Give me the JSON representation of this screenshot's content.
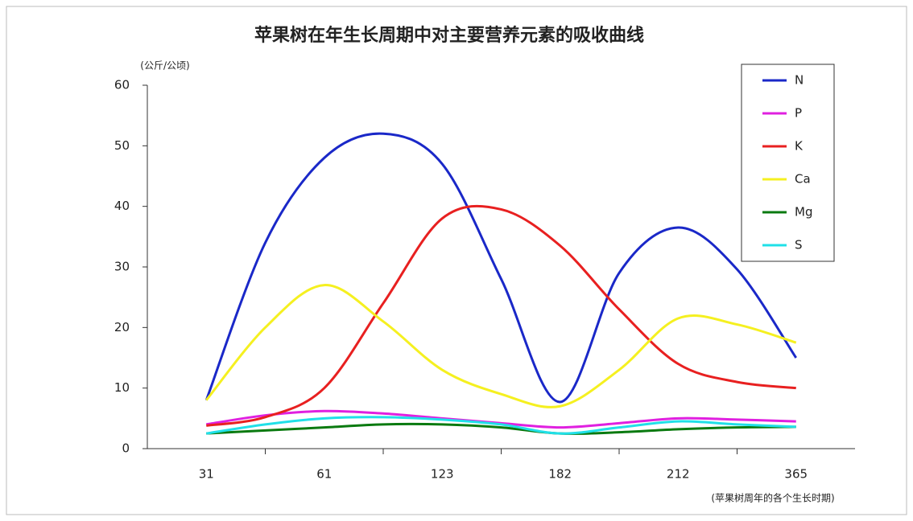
{
  "chart_data": {
    "type": "line",
    "title": "苹果树在年生长周期中对主要营养元素的吸收曲线",
    "y_label": "(公斤/公顷)",
    "x_label": "(苹果树周年的各个生长时期)",
    "categories": [
      "31",
      null,
      "61",
      null,
      "123",
      null,
      "182",
      null,
      "212",
      null,
      "365"
    ],
    "series": [
      {
        "name": "N",
        "color": "#1a28c8",
        "values": [
          8,
          34,
          48,
          52,
          47,
          28,
          7.7,
          29,
          36.5,
          29.6,
          15
        ]
      },
      {
        "name": "P",
        "color": "#e020e0",
        "values": [
          4,
          5.5,
          6.2,
          5.8,
          5,
          4.2,
          3.5,
          4.2,
          5,
          4.8,
          4.5
        ]
      },
      {
        "name": "K",
        "color": "#e82020",
        "values": [
          3.8,
          5.2,
          10,
          24,
          38,
          39.5,
          33.5,
          23,
          14,
          11,
          10
        ]
      },
      {
        "name": "Ca",
        "color": "#f5f020",
        "values": [
          8,
          20,
          27,
          21,
          13,
          9,
          7,
          13,
          21.5,
          20.5,
          17.5
        ]
      },
      {
        "name": "Mg",
        "color": "#0a7a10",
        "values": [
          2.5,
          3,
          3.5,
          4,
          4,
          3.5,
          2.5,
          2.7,
          3.2,
          3.5,
          3.6
        ]
      },
      {
        "name": "S",
        "color": "#20e0e8",
        "values": [
          2.5,
          4,
          5,
          5.2,
          4.8,
          4,
          2.5,
          3.5,
          4.5,
          4,
          3.6
        ]
      }
    ],
    "ylim": [
      0,
      60
    ],
    "yticks": [
      0,
      10,
      20,
      30,
      40,
      50,
      60
    ],
    "grid": false,
    "legend": "upper right"
  }
}
